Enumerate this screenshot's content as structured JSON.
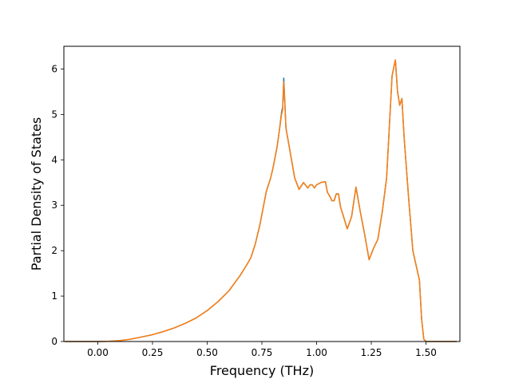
{
  "chart_data": {
    "type": "line",
    "xlabel": "Frequency (THz)",
    "ylabel": "Partial Density of States",
    "xlim": [
      -0.155,
      1.655
    ],
    "ylim": [
      0,
      6.5
    ],
    "xticks": [
      0.0,
      0.25,
      0.5,
      0.75,
      1.0,
      1.25,
      1.5
    ],
    "xtick_labels": [
      "0.00",
      "0.25",
      "0.50",
      "0.75",
      "1.00",
      "1.25",
      "1.50"
    ],
    "yticks": [
      0,
      1,
      2,
      3,
      4,
      5,
      6
    ],
    "ytick_labels": [
      "0",
      "1",
      "2",
      "3",
      "4",
      "5",
      "6"
    ],
    "grid": false,
    "legend": "none",
    "series": [
      {
        "color": "#1f77b4",
        "x": [
          -0.15,
          0.0,
          0.05,
          0.1,
          0.15,
          0.2,
          0.25,
          0.3,
          0.35,
          0.4,
          0.45,
          0.5,
          0.55,
          0.6,
          0.65,
          0.68,
          0.7,
          0.72,
          0.74,
          0.75,
          0.77,
          0.79,
          0.8,
          0.81,
          0.82,
          0.83,
          0.84,
          0.845,
          0.85,
          0.86,
          0.88,
          0.9,
          0.92,
          0.94,
          0.96,
          0.97,
          0.98,
          0.99,
          1.0,
          1.02,
          1.04,
          1.05,
          1.06,
          1.07,
          1.08,
          1.09,
          1.1,
          1.11,
          1.12,
          1.14,
          1.16,
          1.18,
          1.2,
          1.22,
          1.24,
          1.26,
          1.28,
          1.3,
          1.32,
          1.33,
          1.345,
          1.36,
          1.37,
          1.38,
          1.39,
          1.4,
          1.42,
          1.44,
          1.47,
          1.48,
          1.49,
          1.5,
          1.55,
          1.6,
          1.64
        ],
        "y": [
          0,
          0,
          0.005,
          0.02,
          0.05,
          0.1,
          0.15,
          0.22,
          0.3,
          0.4,
          0.52,
          0.68,
          0.88,
          1.12,
          1.45,
          1.68,
          1.85,
          2.15,
          2.55,
          2.8,
          3.3,
          3.6,
          3.8,
          4.05,
          4.3,
          4.65,
          5.05,
          5.15,
          5.8,
          4.7,
          4.15,
          3.6,
          3.35,
          3.5,
          3.38,
          3.45,
          3.45,
          3.38,
          3.45,
          3.5,
          3.52,
          3.28,
          3.2,
          3.1,
          3.1,
          3.25,
          3.25,
          2.95,
          2.8,
          2.48,
          2.75,
          3.4,
          2.85,
          2.35,
          1.8,
          2.05,
          2.25,
          2.85,
          3.6,
          4.5,
          5.85,
          6.2,
          5.5,
          5.2,
          5.35,
          4.5,
          3.2,
          2.0,
          1.35,
          0.5,
          0.05,
          0,
          0,
          0,
          0
        ]
      },
      {
        "color": "#ff7f0e",
        "x": [
          -0.15,
          0.0,
          0.05,
          0.1,
          0.15,
          0.2,
          0.25,
          0.3,
          0.35,
          0.4,
          0.45,
          0.5,
          0.55,
          0.6,
          0.65,
          0.68,
          0.7,
          0.72,
          0.74,
          0.75,
          0.77,
          0.79,
          0.8,
          0.81,
          0.82,
          0.83,
          0.84,
          0.845,
          0.85,
          0.86,
          0.88,
          0.9,
          0.92,
          0.94,
          0.96,
          0.97,
          0.98,
          0.99,
          1.0,
          1.02,
          1.04,
          1.05,
          1.06,
          1.07,
          1.08,
          1.09,
          1.1,
          1.11,
          1.12,
          1.14,
          1.16,
          1.18,
          1.2,
          1.22,
          1.24,
          1.26,
          1.28,
          1.3,
          1.32,
          1.33,
          1.345,
          1.36,
          1.37,
          1.38,
          1.39,
          1.4,
          1.42,
          1.44,
          1.47,
          1.48,
          1.49,
          1.5,
          1.55,
          1.6,
          1.64
        ],
        "y": [
          0,
          0,
          0.005,
          0.02,
          0.05,
          0.1,
          0.15,
          0.22,
          0.3,
          0.4,
          0.52,
          0.68,
          0.88,
          1.12,
          1.45,
          1.68,
          1.85,
          2.15,
          2.55,
          2.8,
          3.3,
          3.6,
          3.8,
          4.05,
          4.3,
          4.65,
          5.0,
          5.1,
          5.72,
          4.7,
          4.15,
          3.6,
          3.35,
          3.5,
          3.38,
          3.45,
          3.45,
          3.38,
          3.45,
          3.5,
          3.52,
          3.28,
          3.2,
          3.1,
          3.1,
          3.25,
          3.25,
          2.95,
          2.8,
          2.48,
          2.75,
          3.4,
          2.85,
          2.35,
          1.8,
          2.05,
          2.25,
          2.85,
          3.6,
          4.5,
          5.85,
          6.2,
          5.5,
          5.2,
          5.35,
          4.5,
          3.2,
          2.0,
          1.35,
          0.5,
          0.05,
          0,
          0,
          0,
          0
        ]
      }
    ]
  }
}
